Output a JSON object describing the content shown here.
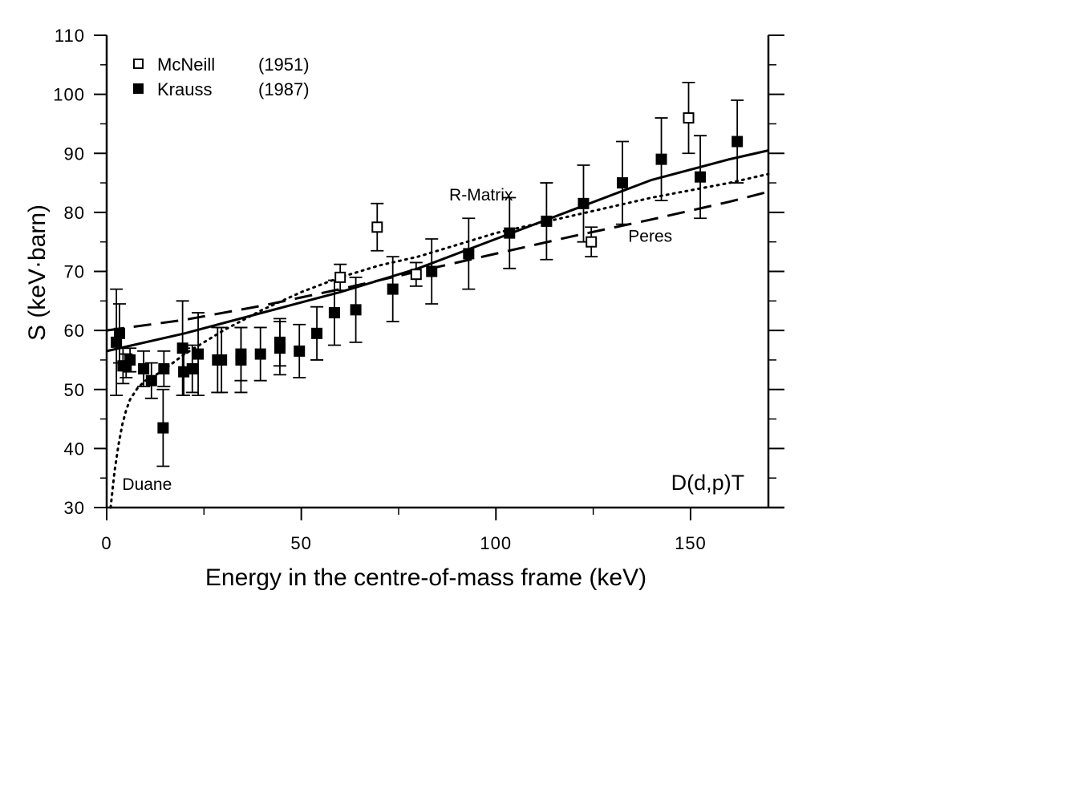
{
  "chart_data": {
    "type": "scatter",
    "xlabel": "Energy in the centre-of-mass frame (keV)",
    "ylabel": "S  (keV·barn)",
    "xlim": [
      0,
      170
    ],
    "ylim": [
      30,
      110
    ],
    "x_ticks": [
      0,
      50,
      100,
      150
    ],
    "x_tick_labels": [
      "0",
      "50",
      "100",
      "150"
    ],
    "y_ticks": [
      30,
      40,
      50,
      60,
      70,
      80,
      90,
      100,
      110
    ],
    "y_tick_labels": [
      "30",
      "40",
      "50",
      "60",
      "70",
      "80",
      "90",
      "100",
      "110"
    ],
    "grid": false,
    "legend_position": "top-left",
    "legend": [
      {
        "label": "McNeill",
        "year": "(1951)",
        "marker": "open-square"
      },
      {
        "label": "Krauss",
        "year": "(1987)",
        "marker": "filled-square"
      }
    ],
    "series": [
      {
        "name": "McNeill",
        "marker": "open-square",
        "points": [
          {
            "x": 60,
            "y": 69,
            "err": 2.2
          },
          {
            "x": 69.5,
            "y": 77.5,
            "err": 4
          },
          {
            "x": 79.5,
            "y": 69.5,
            "err": 2
          },
          {
            "x": 124.5,
            "y": 75,
            "err": 2.5
          },
          {
            "x": 149.5,
            "y": 96,
            "err": 6
          }
        ]
      },
      {
        "name": "Krauss",
        "marker": "filled-square",
        "points": [
          {
            "x": 2.5,
            "y": 58,
            "err": 9
          },
          {
            "x": 3.3,
            "y": 59.5,
            "err": 5
          },
          {
            "x": 4.2,
            "y": 54,
            "err": 3
          },
          {
            "x": 5,
            "y": 54,
            "err": 2
          },
          {
            "x": 6,
            "y": 55,
            "err": 2
          },
          {
            "x": 9.5,
            "y": 53.5,
            "err": 3
          },
          {
            "x": 11.5,
            "y": 51.5,
            "err": 3
          },
          {
            "x": 14.5,
            "y": 43.5,
            "err": 6.5
          },
          {
            "x": 14.7,
            "y": 53.5,
            "err": 3
          },
          {
            "x": 19.5,
            "y": 57,
            "err": 8
          },
          {
            "x": 19.8,
            "y": 53,
            "err": 4
          },
          {
            "x": 22,
            "y": 53.5,
            "err": 4
          },
          {
            "x": 23.5,
            "y": 56,
            "err": 7
          },
          {
            "x": 28.5,
            "y": 55,
            "err": 5.5
          },
          {
            "x": 29.5,
            "y": 55,
            "err": 5.5
          },
          {
            "x": 34.5,
            "y": 56,
            "err": 4.5
          },
          {
            "x": 34.5,
            "y": 55,
            "err": 5.5
          },
          {
            "x": 39.5,
            "y": 56,
            "err": 4.5
          },
          {
            "x": 44.5,
            "y": 58,
            "err": 4
          },
          {
            "x": 44.5,
            "y": 57,
            "err": 4.5
          },
          {
            "x": 49.5,
            "y": 56.5,
            "err": 4.5
          },
          {
            "x": 54,
            "y": 59.5,
            "err": 4.5
          },
          {
            "x": 58.5,
            "y": 63,
            "err": 5.5
          },
          {
            "x": 64,
            "y": 63.5,
            "err": 5.5
          },
          {
            "x": 73.5,
            "y": 67,
            "err": 5.5
          },
          {
            "x": 83.5,
            "y": 70,
            "err": 5.5
          },
          {
            "x": 93,
            "y": 73,
            "err": 6
          },
          {
            "x": 103.5,
            "y": 76.5,
            "err": 6
          },
          {
            "x": 113,
            "y": 78.5,
            "err": 6.5
          },
          {
            "x": 122.5,
            "y": 81.5,
            "err": 6.5
          },
          {
            "x": 132.5,
            "y": 85,
            "err": 7
          },
          {
            "x": 142.5,
            "y": 89,
            "err": 7
          },
          {
            "x": 152.5,
            "y": 86,
            "err": 7
          },
          {
            "x": 162,
            "y": 92,
            "err": 7
          }
        ]
      }
    ],
    "curves": [
      {
        "name": "R-Matrix",
        "style": "solid",
        "points": [
          [
            0,
            56.5
          ],
          [
            20,
            59.5
          ],
          [
            40,
            63
          ],
          [
            60,
            66.5
          ],
          [
            80,
            70.5
          ],
          [
            100,
            75.5
          ],
          [
            120,
            80.5
          ],
          [
            140,
            85.5
          ],
          [
            160,
            89
          ],
          [
            170,
            90.5
          ]
        ]
      },
      {
        "name": "Peres",
        "style": "dashed",
        "points": [
          [
            0,
            60
          ],
          [
            20,
            61.8
          ],
          [
            40,
            64.2
          ],
          [
            60,
            67
          ],
          [
            80,
            70
          ],
          [
            100,
            73
          ],
          [
            120,
            76
          ],
          [
            140,
            78.8
          ],
          [
            160,
            81.8
          ],
          [
            170,
            83.5
          ]
        ]
      },
      {
        "name": "Duane",
        "style": "dotted",
        "points": [
          [
            1,
            30
          ],
          [
            2,
            36
          ],
          [
            3,
            40.5
          ],
          [
            4,
            44
          ],
          [
            5,
            46.5
          ],
          [
            6,
            48.3
          ],
          [
            8,
            50.3
          ],
          [
            10,
            51.5
          ],
          [
            14,
            53
          ],
          [
            20,
            56
          ],
          [
            30,
            60
          ],
          [
            40,
            63.5
          ],
          [
            50,
            66.5
          ],
          [
            60,
            69
          ],
          [
            70,
            71
          ],
          [
            80,
            72.5
          ],
          [
            90,
            74.5
          ],
          [
            100,
            76.5
          ],
          [
            120,
            79.5
          ],
          [
            140,
            82.5
          ],
          [
            160,
            85
          ],
          [
            170,
            86.5
          ]
        ]
      }
    ],
    "annotations": [
      {
        "text": "R-Matrix",
        "x": 88,
        "y": 82
      },
      {
        "text": "Peres",
        "x": 134,
        "y": 75
      },
      {
        "text": "Duane",
        "x": 4,
        "y": 33
      },
      {
        "text": "D(d,p)T",
        "x": 145,
        "y": 33
      }
    ]
  }
}
